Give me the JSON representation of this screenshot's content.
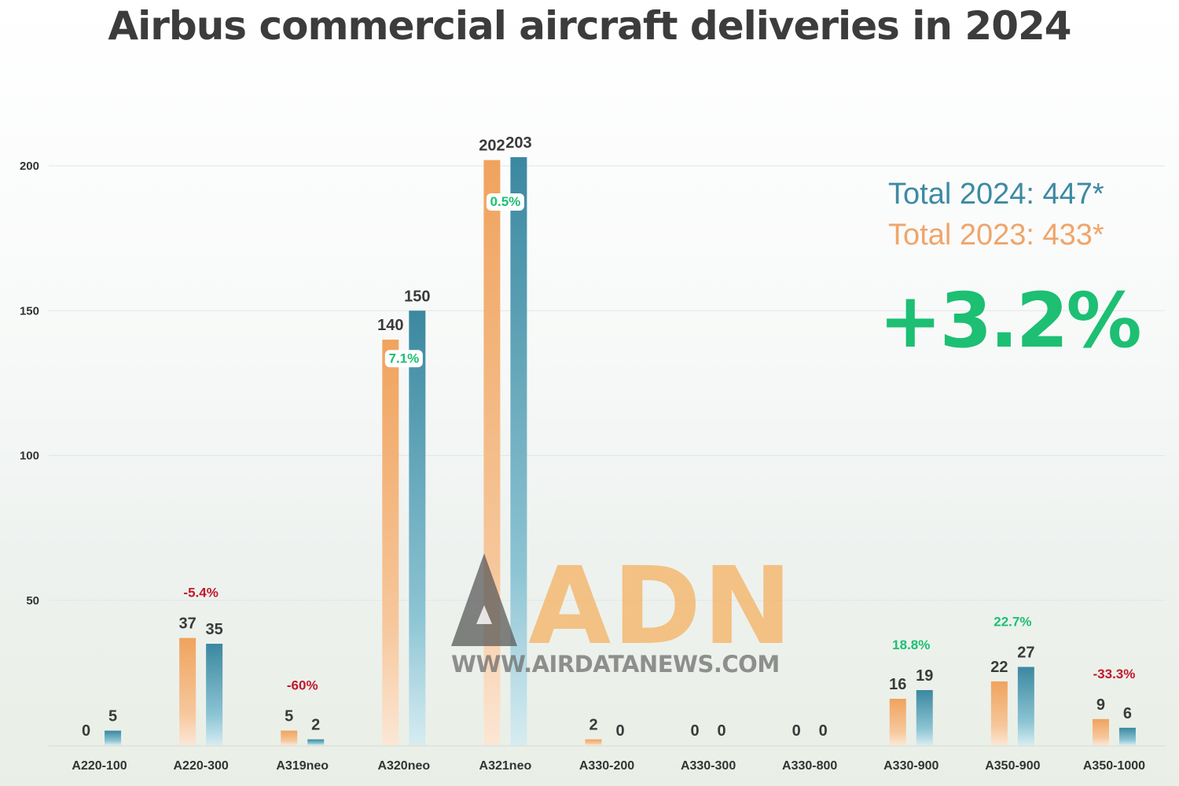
{
  "title": "Airbus commercial aircraft deliveries in 2024",
  "totals": {
    "total_2024": "Total 2024: 447*",
    "total_2023": "Total 2023: 433*",
    "growth": "+3.2%"
  },
  "watermark": {
    "logo_text": "ADN",
    "url": "WWW.AIRDATANEWS.COM"
  },
  "colors": {
    "series_2023": "#f0a35e",
    "series_2024": "#3b88a0",
    "positive": "#1dbf73",
    "negative": "#c2182b",
    "axis_text": "#333333"
  },
  "chart_data": {
    "type": "bar",
    "ylim": [
      0,
      200
    ],
    "yticks": [
      50,
      100,
      150,
      200
    ],
    "grid": true,
    "categories": [
      "A220-100",
      "A220-300",
      "A319neo",
      "A320neo",
      "A321neo",
      "A330-200",
      "A330-300",
      "A330-800",
      "A330-900",
      "A350-900",
      "A350-1000"
    ],
    "series": [
      {
        "values": [
          0,
          37,
          5,
          140,
          202,
          2,
          0,
          0,
          16,
          22,
          9
        ]
      },
      {
        "values": [
          5,
          35,
          2,
          150,
          203,
          0,
          0,
          0,
          19,
          27,
          6
        ]
      }
    ],
    "changes": [
      "",
      "-5.4%",
      "-60%",
      "7.1%",
      "0.5%",
      "",
      "",
      "",
      "18.8%",
      "22.7%",
      "-33.3%"
    ]
  }
}
